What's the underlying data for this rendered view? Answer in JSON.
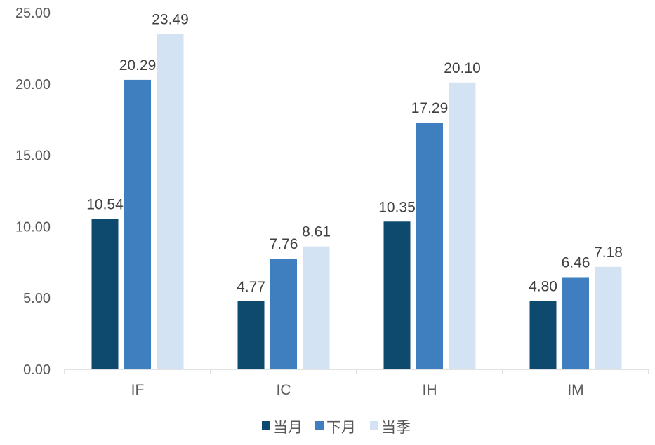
{
  "chart_data": {
    "type": "bar",
    "categories": [
      "IF",
      "IC",
      "IH",
      "IM"
    ],
    "series": [
      {
        "name": "当月",
        "color": "#0d4a6e",
        "values": [
          10.54,
          4.77,
          10.35,
          4.8
        ],
        "labels": [
          "10.54",
          "4.77",
          "10.35",
          "4.80"
        ]
      },
      {
        "name": "下月",
        "color": "#3f7fbf",
        "values": [
          20.29,
          7.76,
          17.29,
          6.46
        ],
        "labels": [
          "20.29",
          "7.76",
          "17.29",
          "6.46"
        ]
      },
      {
        "name": "当季",
        "color": "#d3e3f3",
        "values": [
          23.49,
          8.61,
          20.1,
          7.18
        ],
        "labels": [
          "23.49",
          "8.61",
          "20.10",
          "7.18"
        ]
      }
    ],
    "ylim": [
      0,
      25
    ],
    "y_ticks": [
      "0.00",
      "5.00",
      "10.00",
      "15.00",
      "20.00",
      "25.00"
    ],
    "grid": false,
    "legend_position": "bottom",
    "title": "",
    "xlabel": "",
    "ylabel": ""
  }
}
